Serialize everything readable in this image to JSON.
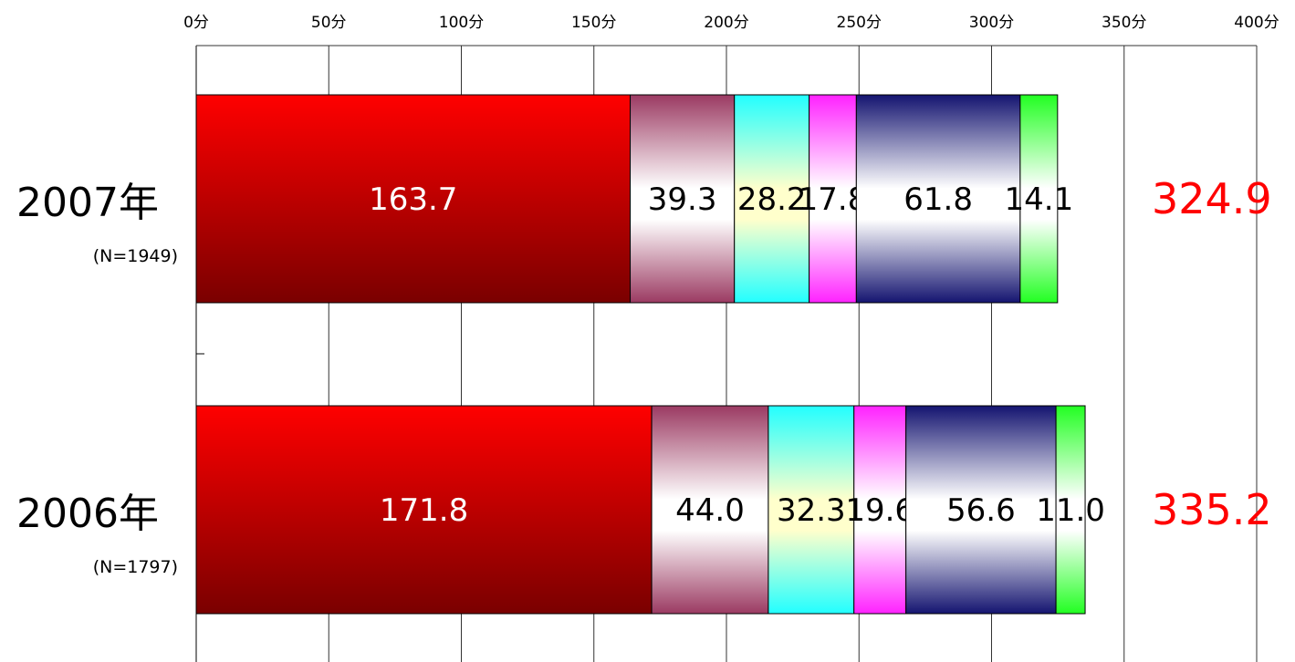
{
  "chart_data": {
    "type": "bar",
    "orientation": "horizontal",
    "stacked": true,
    "xlim": [
      0,
      400
    ],
    "x_ticks": [
      0,
      50,
      100,
      150,
      200,
      250,
      300,
      350,
      400
    ],
    "x_tick_suffix": "分",
    "grid": true,
    "categories": [
      {
        "label": "2007年",
        "n_label": "(N=1949)",
        "total": "324.9"
      },
      {
        "label": "2006年",
        "n_label": "(N=1797)",
        "total": "335.2"
      }
    ],
    "series": [
      {
        "values": [
          163.7,
          171.8
        ],
        "labels": [
          "163.7",
          "171.8"
        ],
        "colors": [
          "#ff0000",
          "#7a0000"
        ],
        "text_color": "#ffffff"
      },
      {
        "values": [
          39.3,
          44.0
        ],
        "labels": [
          "39.3",
          "44.0"
        ],
        "colors": [
          "#9b3a62",
          "#ffffff"
        ],
        "text_color": "#000000"
      },
      {
        "values": [
          28.2,
          32.3
        ],
        "labels": [
          "28.2",
          "32.3"
        ],
        "colors": [
          "#22ffff",
          "#ffffcc"
        ],
        "text_color": "#000000"
      },
      {
        "values": [
          17.8,
          19.6
        ],
        "labels": [
          "17.8",
          "19.6"
        ],
        "colors": [
          "#ff22ff",
          "#ffffff"
        ],
        "text_color": "#000000"
      },
      {
        "values": [
          61.8,
          56.6
        ],
        "labels": [
          "61.8",
          "56.6"
        ],
        "colors": [
          "#141470",
          "#ffffff"
        ],
        "text_color": "#000000"
      },
      {
        "values": [
          14.1,
          11.0
        ],
        "labels": [
          "14.1",
          "11.0"
        ],
        "colors": [
          "#22ff22",
          "#ffffff"
        ],
        "text_color": "#000000"
      }
    ]
  }
}
